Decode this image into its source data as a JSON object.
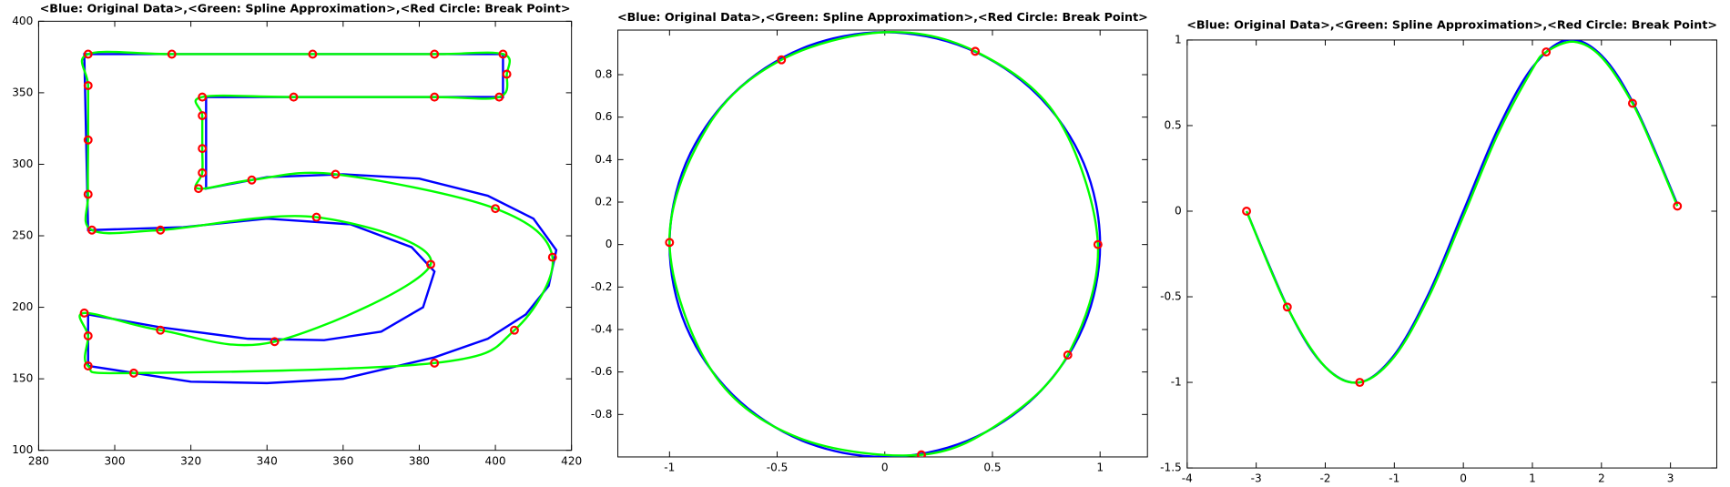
{
  "chart_data": [
    {
      "type": "line",
      "title": "<Blue: Original Data>,<Green: Spline Approximation>,<Red Circle: Break Point>",
      "xlim": [
        280,
        420
      ],
      "ylim": [
        100,
        400
      ],
      "xticks": [
        280,
        300,
        320,
        340,
        360,
        380,
        400,
        420
      ],
      "yticks": [
        100,
        150,
        200,
        250,
        300,
        350,
        400
      ],
      "series": [
        {
          "color": "#0000ff",
          "smooth": false,
          "closed": true,
          "x": [
            292,
            402,
            402,
            324,
            324,
            340,
            360,
            380,
            398,
            410,
            416,
            414,
            408,
            398,
            384,
            360,
            340,
            320,
            293,
            293,
            312,
            335,
            355,
            370,
            381,
            384,
            378,
            362,
            340,
            318,
            294,
            293
          ],
          "y": [
            377,
            377,
            347,
            347,
            283,
            291,
            293,
            290,
            278,
            262,
            240,
            215,
            195,
            178,
            165,
            150,
            147,
            148,
            159,
            195,
            186,
            178,
            177,
            183,
            200,
            225,
            242,
            258,
            262,
            256,
            254,
            254
          ]
        },
        {
          "color": "#00ff00",
          "smooth": true,
          "closed": true,
          "x": [
            293,
            315,
            352,
            384,
            402,
            403,
            401,
            384,
            347,
            323,
            323,
            323,
            323,
            322,
            336,
            358,
            400,
            415,
            405,
            384,
            305,
            293,
            293,
            292,
            312,
            342,
            383,
            353,
            312,
            294,
            293,
            293,
            293
          ],
          "y": [
            377,
            377,
            377,
            377,
            377,
            363,
            347,
            347,
            347,
            347,
            334,
            311,
            294,
            283,
            289,
            293,
            269,
            235,
            184,
            161,
            154,
            159,
            180,
            196,
            184,
            176,
            230,
            263,
            254,
            254,
            279,
            317,
            355
          ]
        },
        {
          "color": "#ff0000",
          "marker": "circle",
          "x": [
            293,
            315,
            352,
            384,
            402,
            403,
            401,
            384,
            347,
            323,
            323,
            323,
            323,
            322,
            336,
            358,
            400,
            415,
            405,
            384,
            305,
            293,
            293,
            292,
            312,
            342,
            383,
            353,
            312,
            294,
            293,
            293,
            293
          ],
          "y": [
            377,
            377,
            377,
            377,
            377,
            363,
            347,
            347,
            347,
            347,
            334,
            311,
            294,
            283,
            289,
            293,
            269,
            235,
            184,
            161,
            154,
            159,
            180,
            196,
            184,
            176,
            230,
            263,
            254,
            254,
            279,
            317,
            355
          ]
        }
      ]
    },
    {
      "type": "line",
      "title": "<Blue: Original Data>,<Green: Spline Approximation>,<Red Circle: Break Point>",
      "xlim": [
        -1.24,
        1.22
      ],
      "ylim": [
        -1.0,
        1.01
      ],
      "xticks": [
        -1,
        -0.5,
        0,
        0.5,
        1
      ],
      "yticks": [
        -0.8,
        -0.6,
        -0.4,
        -0.2,
        0,
        0.2,
        0.4,
        0.6,
        0.8
      ],
      "series": [
        {
          "color": "#0000ff",
          "smooth": true,
          "closed": true,
          "x": [
            1,
            0.924,
            0.707,
            0.383,
            0,
            -0.383,
            -0.707,
            -0.924,
            -1,
            -0.924,
            -0.707,
            -0.383,
            0,
            0.383,
            0.707,
            0.924
          ],
          "y": [
            0,
            0.383,
            0.707,
            0.924,
            1,
            0.924,
            0.707,
            0.383,
            0,
            -0.383,
            -0.707,
            -0.924,
            -1,
            -0.924,
            -0.707,
            -0.383
          ]
        },
        {
          "color": "#00ff00",
          "smooth": true,
          "closed": true,
          "x": [
            -1,
            -0.82,
            -0.48,
            0,
            0.42,
            0.8,
            0.99,
            0.85,
            0.55,
            0.17,
            -0.4,
            -0.8
          ],
          "y": [
            0.01,
            0.56,
            0.87,
            1,
            0.91,
            0.6,
            0,
            -0.52,
            -0.83,
            -0.99,
            -0.91,
            -0.6
          ]
        },
        {
          "color": "#ff0000",
          "marker": "circle",
          "x": [
            -1,
            -0.48,
            0.42,
            0.99,
            0.85,
            0.17
          ],
          "y": [
            0.01,
            0.87,
            0.91,
            0,
            -0.52,
            -0.99
          ]
        }
      ]
    },
    {
      "type": "line",
      "title": "<Blue: Original Data>,<Green: Spline Approximation>,<Red Circle: Break Point>",
      "xlim": [
        -4,
        3.67
      ],
      "ylim": [
        -1.5,
        1
      ],
      "xticks": [
        -4,
        -3,
        -2,
        -1,
        0,
        1,
        2,
        3
      ],
      "yticks": [
        -1.5,
        -1,
        -0.5,
        0,
        0.5,
        1
      ],
      "series": [
        {
          "color": "#0000ff",
          "smooth": true,
          "closed": false,
          "x": [
            -3.14,
            -2.5,
            -2,
            -1.5,
            -1,
            -0.5,
            0,
            0.5,
            1,
            1.5,
            2,
            2.5,
            3.1
          ],
          "y": [
            0,
            -0.6,
            -0.91,
            -1,
            -0.84,
            -0.48,
            0,
            0.48,
            0.84,
            1,
            0.91,
            0.6,
            0.04
          ]
        },
        {
          "color": "#00ff00",
          "smooth": true,
          "closed": false,
          "x": [
            -3.14,
            -2.55,
            -2,
            -1.5,
            -1,
            -0.5,
            0,
            0.5,
            1,
            1.2,
            1.6,
            2,
            2.45,
            2.8,
            3.1
          ],
          "y": [
            0,
            -0.56,
            -0.91,
            -1,
            -0.85,
            -0.5,
            -0.03,
            0.45,
            0.83,
            0.93,
            0.99,
            0.9,
            0.63,
            0.32,
            0.03
          ]
        },
        {
          "color": "#ff0000",
          "marker": "circle",
          "x": [
            -3.14,
            -2.55,
            -1.5,
            1.2,
            2.45,
            3.1
          ],
          "y": [
            0,
            -0.56,
            -1,
            0.93,
            0.63,
            0.03
          ]
        }
      ]
    }
  ]
}
